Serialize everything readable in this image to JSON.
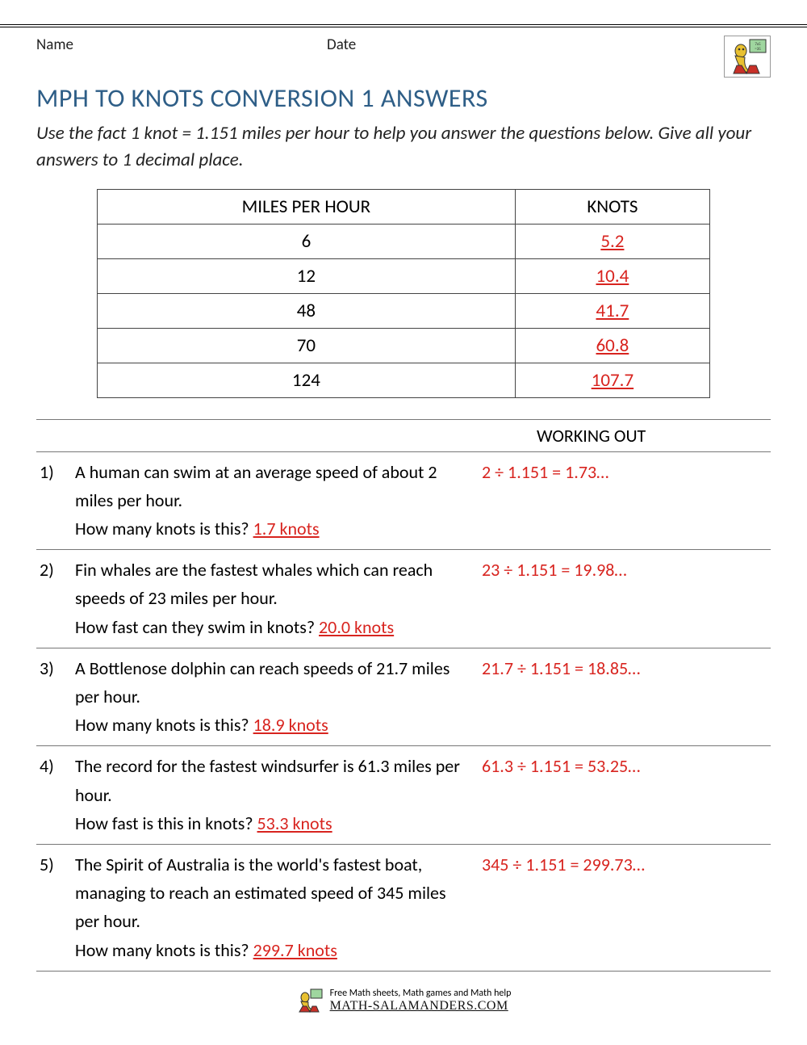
{
  "header": {
    "name_label": "Name",
    "date_label": "Date"
  },
  "title": "MPH TO KNOTS CONVERSION 1 ANSWERS",
  "instructions": "Use the fact 1 knot = 1.151 miles per hour to help you answer the questions below. Give all your answers to 1 decimal place.",
  "table": {
    "col1_header": "MILES PER HOUR",
    "col2_header": "KNOTS",
    "rows": [
      {
        "mph": "6",
        "knots": "5.2"
      },
      {
        "mph": "12",
        "knots": "10.4"
      },
      {
        "mph": "48",
        "knots": "41.7"
      },
      {
        "mph": "70",
        "knots": "60.8"
      },
      {
        "mph": "124",
        "knots": "107.7"
      }
    ]
  },
  "working_out_label": "WORKING OUT",
  "questions": [
    {
      "num": "1)",
      "text": "A human can swim at an average speed of about 2 miles per hour.",
      "prompt": "How many knots is this? ",
      "answer": "1.7 knots",
      "working": "2 ÷ 1.151 = 1.73…"
    },
    {
      "num": "2)",
      "text": "Fin whales are the fastest whales which can reach speeds of 23 miles per hour.",
      "prompt": "How fast can they swim in knots? ",
      "answer": "20.0 knots",
      "working": "23 ÷ 1.151 = 19.98…"
    },
    {
      "num": "3)",
      "text": "A Bottlenose dolphin can reach speeds of 21.7 miles per hour.",
      "prompt": "How many knots is this? ",
      "answer": "18.9 knots",
      "working": "21.7 ÷ 1.151 = 18.85…"
    },
    {
      "num": "4)",
      "text": "The record for the fastest windsurfer is 61.3 miles per hour.",
      "prompt": "How fast is this in knots? ",
      "answer": "53.3 knots",
      "working": "61.3 ÷ 1.151 = 53.25…"
    },
    {
      "num": "5)",
      "text": "The Spirit of Australia is the world's fastest boat, managing to reach an estimated speed of 345 miles per hour.",
      "prompt": "How many knots is this? ",
      "answer": "299.7 knots",
      "working": "345 ÷ 1.151 = 299.73…"
    }
  ],
  "footer": {
    "line1": "Free Math sheets, Math games and Math help",
    "line2": "MATH-SALAMANDERS.COM"
  },
  "colors": {
    "title": "#2e5e87",
    "answer": "#d8241f",
    "rule": "#000000",
    "border": "#777777"
  }
}
